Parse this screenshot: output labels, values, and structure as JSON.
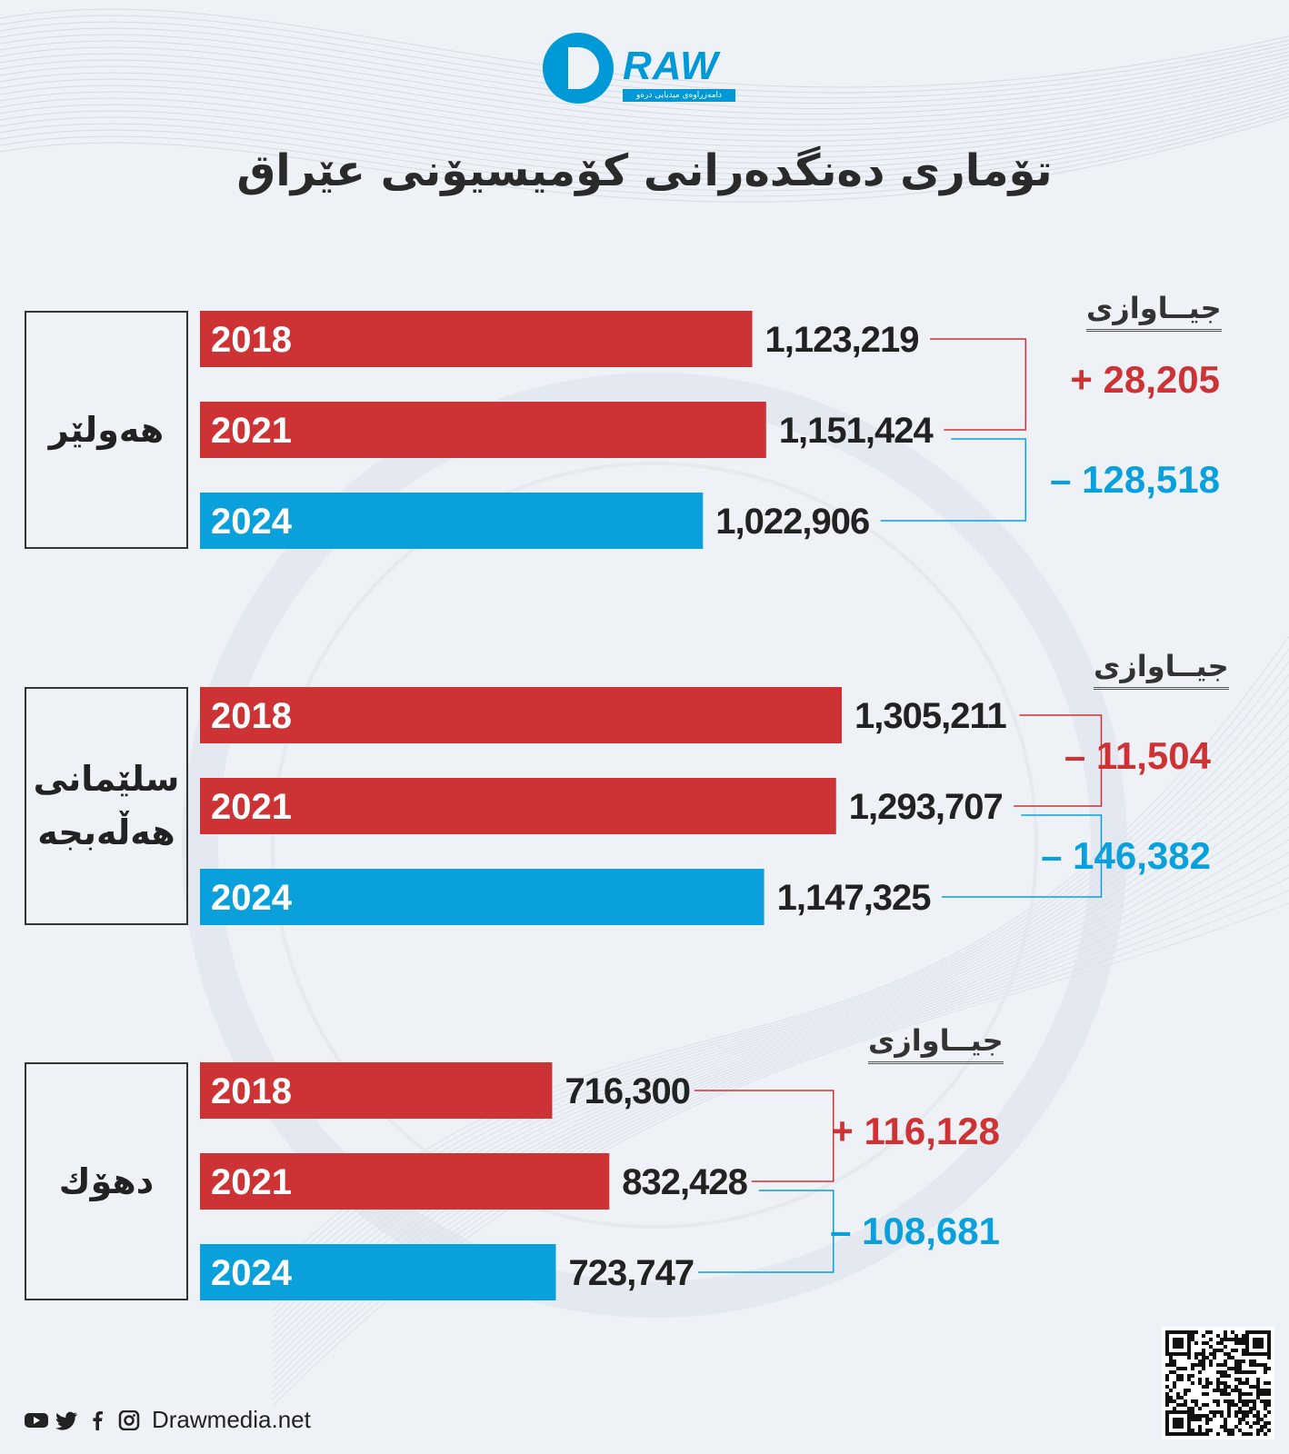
{
  "brand": {
    "logo_word": "RAW",
    "logo_tagline": "دامەزراوەی میدیایی درەو",
    "website": "Drawmedia.net"
  },
  "title": "تۆماری دەنگدەرانی کۆمیسیۆنی عێراق",
  "diff_label": "جیــاوازی",
  "colors": {
    "red": "#cd3334",
    "blue": "#0aa0dc"
  },
  "social_icons": [
    "youtube-icon",
    "twitter-icon",
    "facebook-icon",
    "instagram-icon"
  ],
  "chart_data": {
    "type": "bar",
    "title": "تۆماری دەنگدەرانی کۆمیسیۆنی عێراق",
    "categories": [
      "2018",
      "2021",
      "2024"
    ],
    "series": [
      {
        "name": "هەولێر",
        "values": [
          1123219,
          1151424,
          1022906
        ],
        "labels": [
          "1,123,219",
          "1,151,424",
          "1,022,906"
        ],
        "differences": [
          {
            "sign": "+",
            "value": "28,205",
            "color": "red"
          },
          {
            "sign": "–",
            "value": "128,518",
            "color": "blue"
          }
        ]
      },
      {
        "name": "سلێمانی\nهەڵەبجە",
        "values": [
          1305211,
          1293707,
          1147325
        ],
        "labels": [
          "1,305,211",
          "1,293,707",
          "1,147,325"
        ],
        "differences": [
          {
            "sign": "–",
            "value": "11,504",
            "color": "red"
          },
          {
            "sign": "–",
            "value": "146,382",
            "color": "blue"
          }
        ]
      },
      {
        "name": "دهۆك",
        "values": [
          716300,
          832428,
          723747
        ],
        "labels": [
          "716,300",
          "832,428",
          "723,747"
        ],
        "differences": [
          {
            "sign": "+",
            "value": "116,128",
            "color": "red"
          },
          {
            "sign": "–",
            "value": "108,681",
            "color": "blue"
          }
        ]
      }
    ]
  }
}
